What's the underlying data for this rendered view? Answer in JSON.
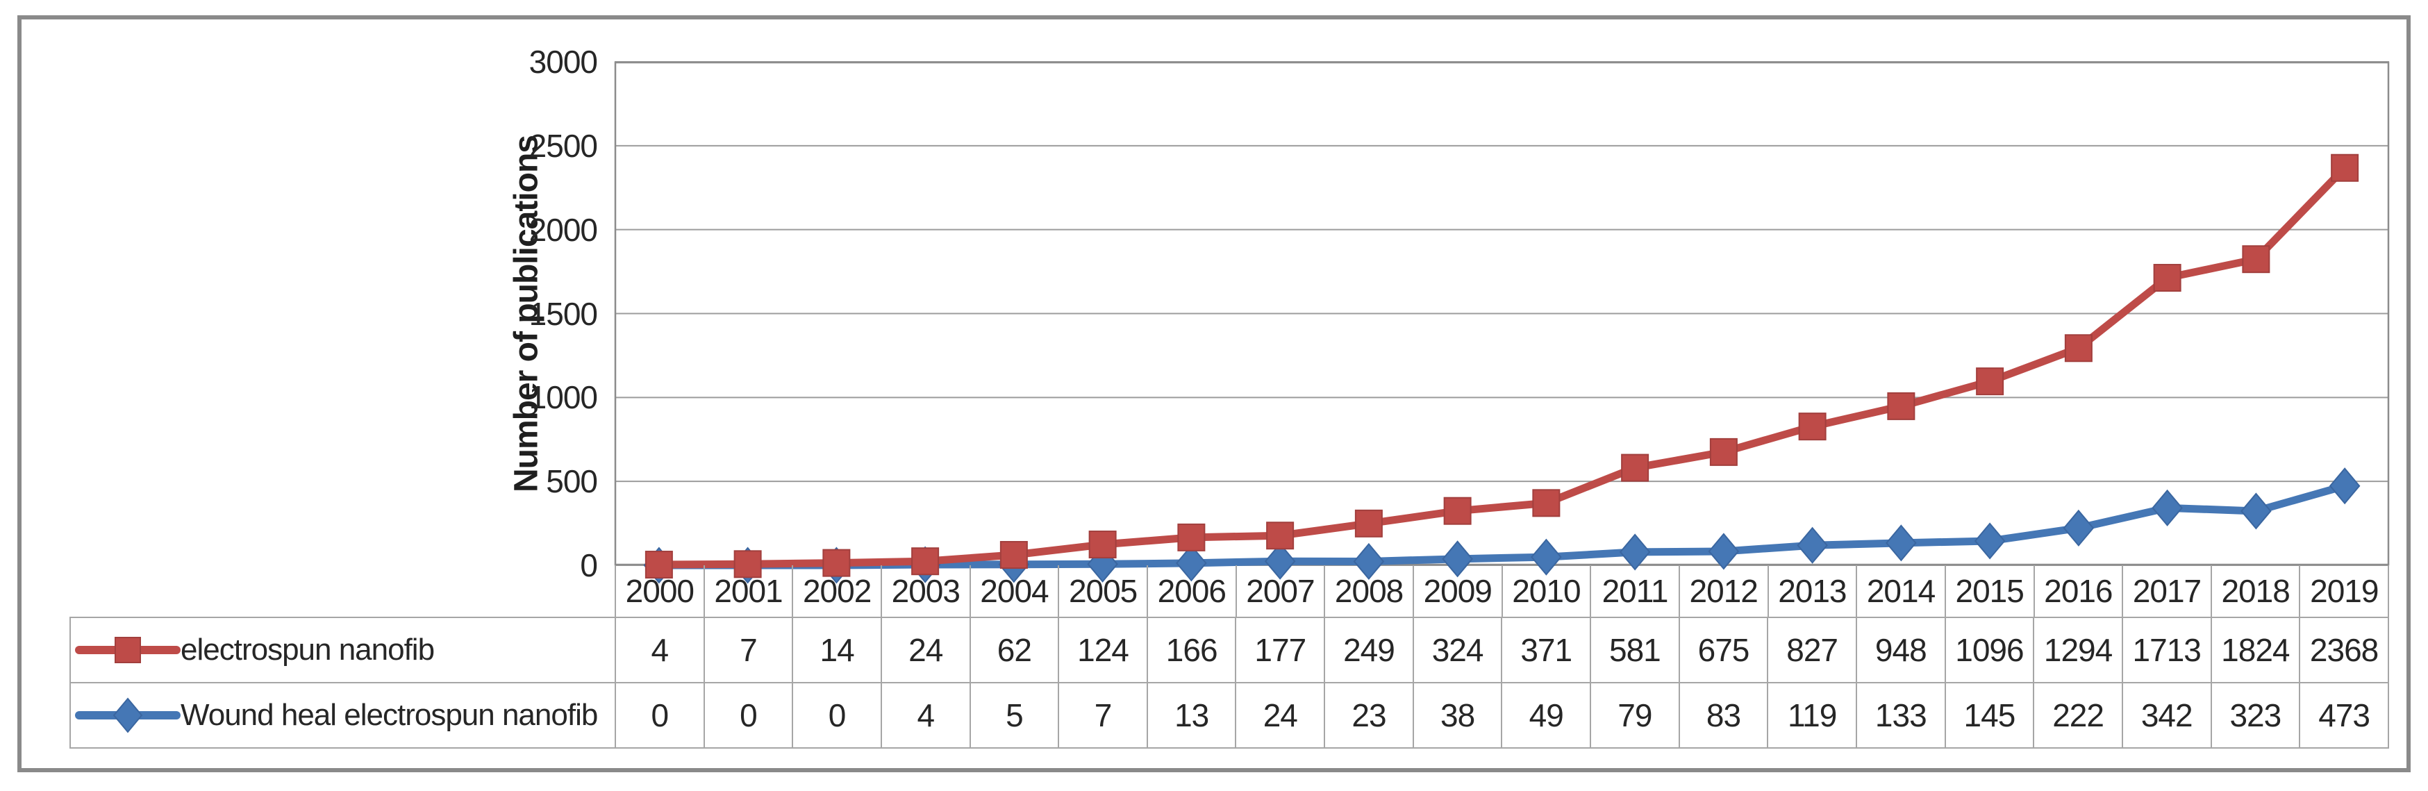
{
  "chart_data": {
    "type": "line",
    "title": "",
    "ylabel": "Number of publications",
    "xlabel": "",
    "categories": [
      "2000",
      "2001",
      "2002",
      "2003",
      "2004",
      "2005",
      "2006",
      "2007",
      "2008",
      "2009",
      "2010",
      "2011",
      "2012",
      "2013",
      "2014",
      "2015",
      "2016",
      "2017",
      "2018",
      "2019"
    ],
    "series": [
      {
        "name": "electrospun nanofib",
        "marker": "square",
        "color": "#BE4B48",
        "marker_edge": "#A23F3D",
        "values": [
          4,
          7,
          14,
          24,
          62,
          124,
          166,
          177,
          249,
          324,
          371,
          581,
          675,
          827,
          948,
          1096,
          1294,
          1713,
          1824,
          2368
        ]
      },
      {
        "name": "Wound heal electrospun nanofib",
        "marker": "diamond",
        "color": "#4577B5",
        "marker_edge": "#3A66A0",
        "values": [
          0,
          0,
          0,
          4,
          5,
          7,
          13,
          24,
          23,
          38,
          49,
          79,
          83,
          119,
          133,
          145,
          222,
          342,
          323,
          473
        ]
      }
    ],
    "ylim": [
      0,
      3000
    ],
    "yticks": [
      0,
      500,
      1000,
      1500,
      2000,
      2500,
      3000
    ],
    "grid": true,
    "legend_position": "data-table-rows-left",
    "colors": {
      "gridline": "#9C9C9C",
      "plot_border": "#8C8C8C",
      "table_border": "#A6A6A6",
      "frame_border": "#8A8A8A",
      "text": "#262626"
    }
  }
}
